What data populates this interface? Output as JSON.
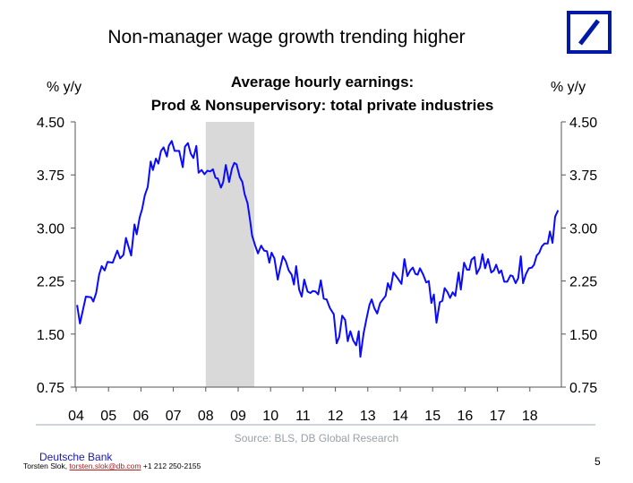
{
  "slide": {
    "title": "Non-manager wage growth trending higher",
    "page_number": "5",
    "source": "Source: BLS, DB Global Research",
    "footer": {
      "bank": "Deutsche Bank",
      "author": "Torsten Slok,",
      "email": "torsten.slok@db.com",
      "phone": "+1 212 250-2155"
    }
  },
  "colors": {
    "line": "#0a0aff",
    "recession": "#d9d9d9",
    "logo": "#0018a8"
  },
  "chart_data": {
    "type": "line",
    "title_line1": "Average hourly earnings:",
    "title_line2": "Prod & Nonsupervisory: total private industries",
    "ylabel_left": "% y/y",
    "ylabel_right": "% y/y",
    "ylim": [
      0.75,
      4.5
    ],
    "yticks": [
      "4.50",
      "3.75",
      "3.00",
      "2.25",
      "1.50",
      "0.75"
    ],
    "xlim": [
      2004,
      2019
    ],
    "xtick_labels": [
      "04",
      "05",
      "06",
      "07",
      "08",
      "09",
      "10",
      "11",
      "12",
      "13",
      "14",
      "15",
      "16",
      "17",
      "18"
    ],
    "recession_shading": [
      2008.0,
      2009.5
    ],
    "series": [
      {
        "name": "Average hourly earnings, production & nonsupervisory, % y/y",
        "x": [
          2004.03,
          2004.12,
          2004.3,
          2004.46,
          2004.53,
          2004.62,
          2004.71,
          2004.79,
          2004.88,
          2004.97,
          2005.13,
          2005.27,
          2005.36,
          2005.46,
          2005.54,
          2005.7,
          2005.8,
          2005.87,
          2005.96,
          2006.04,
          2006.12,
          2006.21,
          2006.3,
          2006.37,
          2006.46,
          2006.54,
          2006.62,
          2006.7,
          2006.8,
          2006.86,
          2006.95,
          2007.04,
          2007.18,
          2007.29,
          2007.36,
          2007.45,
          2007.54,
          2007.62,
          2007.71,
          2007.78,
          2007.87,
          2007.96,
          2008.05,
          2008.14,
          2008.22,
          2008.3,
          2008.37,
          2008.47,
          2008.54,
          2008.62,
          2008.72,
          2008.81,
          2008.88,
          2008.95,
          2009.05,
          2009.13,
          2009.2,
          2009.29,
          2009.37,
          2009.43,
          2009.52,
          2009.61,
          2009.71,
          2009.8,
          2009.89,
          2009.96,
          2010.03,
          2010.12,
          2010.22,
          2010.29,
          2010.38,
          2010.47,
          2010.56,
          2010.65,
          2010.72,
          2010.79,
          2010.88,
          2010.96,
          2011.04,
          2011.14,
          2011.23,
          2011.3,
          2011.39,
          2011.47,
          2011.55,
          2011.64,
          2011.73,
          2011.83,
          2011.95,
          2012.04,
          2012.12,
          2012.21,
          2012.3,
          2012.38,
          2012.46,
          2012.55,
          2012.64,
          2012.72,
          2012.77,
          2012.87,
          2012.96,
          2013.05,
          2013.12,
          2013.2,
          2013.29,
          2013.38,
          2013.55,
          2013.62,
          2013.7,
          2013.79,
          2013.92,
          2014.04,
          2014.13,
          2014.22,
          2014.31,
          2014.39,
          2014.47,
          2014.54,
          2014.61,
          2014.71,
          2014.8,
          2014.88,
          2014.96,
          2015.04,
          2015.12,
          2015.22,
          2015.3,
          2015.37,
          2015.46,
          2015.54,
          2015.62,
          2015.7,
          2015.8,
          2015.87,
          2015.97,
          2016.06,
          2016.13,
          2016.2,
          2016.29,
          2016.36,
          2016.46,
          2016.54,
          2016.62,
          2016.71,
          2016.81,
          2016.89,
          2016.96,
          2017.05,
          2017.12,
          2017.21,
          2017.3,
          2017.4,
          2017.47,
          2017.56,
          2017.64,
          2017.72,
          2017.79,
          2017.88,
          2017.97,
          2018.06,
          2018.13,
          2018.21,
          2018.29,
          2018.37,
          2018.45,
          2018.55,
          2018.62,
          2018.7,
          2018.78,
          2018.87
        ],
        "y": [
          1.91,
          1.65,
          2.03,
          2.02,
          1.96,
          2.08,
          2.34,
          2.46,
          2.4,
          2.52,
          2.51,
          2.68,
          2.57,
          2.62,
          2.86,
          2.61,
          3.05,
          2.91,
          3.15,
          3.27,
          3.46,
          3.58,
          3.94,
          3.82,
          3.98,
          3.91,
          4.09,
          4.14,
          4.01,
          4.16,
          4.23,
          4.09,
          4.09,
          3.86,
          4.15,
          4.2,
          4.05,
          3.99,
          4.16,
          3.78,
          3.82,
          3.76,
          3.81,
          3.8,
          3.83,
          3.71,
          3.7,
          3.57,
          3.65,
          3.89,
          3.65,
          3.84,
          3.92,
          3.9,
          3.72,
          3.65,
          3.48,
          3.35,
          3.1,
          2.89,
          2.76,
          2.64,
          2.75,
          2.68,
          2.67,
          2.51,
          2.65,
          2.57,
          2.27,
          2.42,
          2.6,
          2.53,
          2.4,
          2.34,
          2.2,
          2.46,
          2.13,
          2.03,
          2.27,
          2.1,
          2.08,
          2.11,
          2.1,
          2.06,
          2.26,
          2.0,
          1.99,
          1.87,
          1.78,
          1.37,
          1.46,
          1.76,
          1.7,
          1.4,
          1.54,
          1.41,
          1.34,
          1.54,
          1.18,
          1.51,
          1.72,
          1.91,
          1.99,
          1.87,
          1.79,
          1.94,
          2.04,
          2.22,
          2.13,
          2.37,
          2.29,
          2.21,
          2.56,
          2.32,
          2.4,
          2.44,
          2.35,
          2.34,
          2.43,
          2.34,
          2.23,
          2.25,
          1.94,
          2.06,
          1.66,
          1.95,
          1.97,
          2.15,
          2.09,
          2.01,
          2.09,
          2.04,
          2.37,
          2.13,
          2.51,
          2.41,
          2.41,
          2.55,
          2.59,
          2.35,
          2.44,
          2.63,
          2.43,
          2.56,
          2.37,
          2.4,
          2.48,
          2.36,
          2.4,
          2.24,
          2.24,
          2.33,
          2.32,
          2.22,
          2.29,
          2.6,
          2.22,
          2.35,
          2.43,
          2.44,
          2.48,
          2.61,
          2.65,
          2.74,
          2.78,
          2.78,
          2.95,
          2.79,
          3.16,
          3.25
        ]
      }
    ]
  }
}
